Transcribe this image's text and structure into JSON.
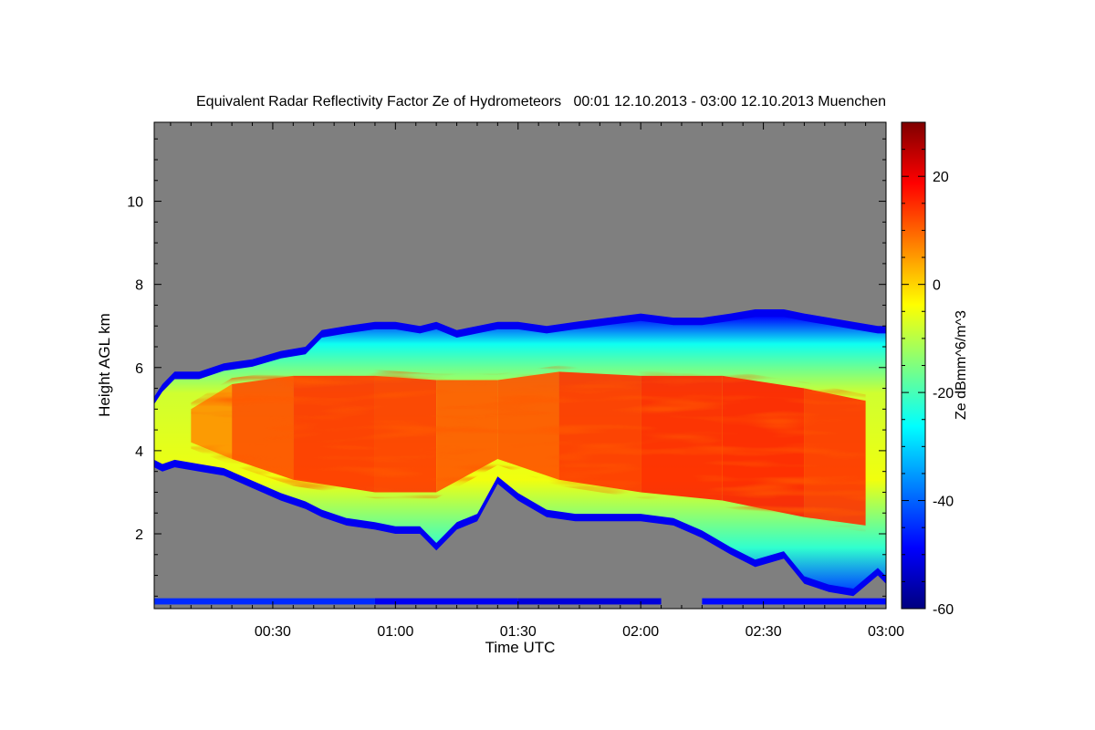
{
  "chart_data": {
    "type": "heatmap",
    "title": "Equivalent Radar Reflectivity Factor Ze of Hydrometeors   00:01 12.10.2013 - 03:00 12.10.2013 Muenchen",
    "xlabel": "Time UTC",
    "ylabel": "Height AGL km",
    "colorbar_label": "Ze dBmm^6/m^3",
    "x_unit": "minutes",
    "xlim": [
      1,
      180
    ],
    "ylim": [
      0.2,
      11.9
    ],
    "zlim": [
      -60,
      30
    ],
    "x_ticks": [
      {
        "value": 30,
        "label": "00:30"
      },
      {
        "value": 60,
        "label": "01:00"
      },
      {
        "value": 90,
        "label": "01:30"
      },
      {
        "value": 120,
        "label": "02:00"
      },
      {
        "value": 150,
        "label": "02:30"
      },
      {
        "value": 180,
        "label": "03:00"
      }
    ],
    "y_ticks": [
      {
        "value": 2,
        "label": "2"
      },
      {
        "value": 4,
        "label": "4"
      },
      {
        "value": 6,
        "label": "6"
      },
      {
        "value": 8,
        "label": "8"
      },
      {
        "value": 10,
        "label": "10"
      }
    ],
    "colorbar_ticks": [
      {
        "value": -60,
        "label": "-60"
      },
      {
        "value": -40,
        "label": "-40"
      },
      {
        "value": -20,
        "label": "-20"
      },
      {
        "value": 0,
        "label": "0"
      },
      {
        "value": 20,
        "label": "20"
      }
    ],
    "colormap": [
      "#00007f",
      "#0000ff",
      "#007fff",
      "#00ffff",
      "#7fff7f",
      "#ffff00",
      "#ff7f00",
      "#ff0000",
      "#7f0000"
    ],
    "no_data_color": "#7f7f7f",
    "cloud_profile": [
      {
        "time": 1,
        "top": 5.3,
        "base": 3.6
      },
      {
        "time": 3,
        "top": 5.6,
        "base": 3.5
      },
      {
        "time": 6,
        "top": 5.9,
        "base": 3.6
      },
      {
        "time": 12,
        "top": 5.9,
        "base": 3.5
      },
      {
        "time": 18,
        "top": 6.1,
        "base": 3.4
      },
      {
        "time": 25,
        "top": 6.2,
        "base": 3.1
      },
      {
        "time": 32,
        "top": 6.4,
        "base": 2.8
      },
      {
        "time": 38,
        "top": 6.5,
        "base": 2.6
      },
      {
        "time": 42,
        "top": 6.9,
        "base": 2.4
      },
      {
        "time": 48,
        "top": 7.0,
        "base": 2.2
      },
      {
        "time": 55,
        "top": 7.1,
        "base": 2.1
      },
      {
        "time": 60,
        "top": 7.1,
        "base": 2.0
      },
      {
        "time": 66,
        "top": 7.0,
        "base": 2.0
      },
      {
        "time": 70,
        "top": 7.1,
        "base": 1.6
      },
      {
        "time": 75,
        "top": 6.9,
        "base": 2.1
      },
      {
        "time": 80,
        "top": 7.0,
        "base": 2.3
      },
      {
        "time": 85,
        "top": 7.1,
        "base": 3.2
      },
      {
        "time": 90,
        "top": 7.1,
        "base": 2.8
      },
      {
        "time": 97,
        "top": 7.0,
        "base": 2.4
      },
      {
        "time": 104,
        "top": 7.1,
        "base": 2.3
      },
      {
        "time": 112,
        "top": 7.2,
        "base": 2.3
      },
      {
        "time": 120,
        "top": 7.3,
        "base": 2.3
      },
      {
        "time": 128,
        "top": 7.2,
        "base": 2.2
      },
      {
        "time": 135,
        "top": 7.2,
        "base": 1.9
      },
      {
        "time": 142,
        "top": 7.3,
        "base": 1.5
      },
      {
        "time": 148,
        "top": 7.4,
        "base": 1.2
      },
      {
        "time": 155,
        "top": 7.4,
        "base": 1.4
      },
      {
        "time": 160,
        "top": 7.3,
        "base": 0.8
      },
      {
        "time": 166,
        "top": 7.2,
        "base": 0.6
      },
      {
        "time": 172,
        "top": 7.1,
        "base": 0.5
      },
      {
        "time": 178,
        "top": 7.0,
        "base": 1.0
      },
      {
        "time": 180,
        "top": 7.0,
        "base": 0.8
      }
    ],
    "core": [
      {
        "time": 10,
        "top": 5.0,
        "base": 4.2,
        "ze": 2
      },
      {
        "time": 20,
        "top": 5.6,
        "base": 3.8,
        "ze": 10
      },
      {
        "time": 35,
        "top": 5.8,
        "base": 3.3,
        "ze": 14
      },
      {
        "time": 55,
        "top": 5.8,
        "base": 3.0,
        "ze": 15
      },
      {
        "time": 70,
        "top": 5.7,
        "base": 3.0,
        "ze": 13
      },
      {
        "time": 85,
        "top": 5.7,
        "base": 3.8,
        "ze": 9
      },
      {
        "time": 100,
        "top": 5.9,
        "base": 3.3,
        "ze": 14
      },
      {
        "time": 120,
        "top": 5.8,
        "base": 3.0,
        "ze": 15
      },
      {
        "time": 140,
        "top": 5.8,
        "base": 2.8,
        "ze": 17
      },
      {
        "time": 160,
        "top": 5.5,
        "base": 2.4,
        "ze": 16
      },
      {
        "time": 175,
        "top": 5.2,
        "base": 2.2,
        "ze": 13
      }
    ],
    "surface_clutter": [
      {
        "t_start": 1,
        "t_end": 55,
        "ze": -45
      },
      {
        "t_start": 55,
        "t_end": 90,
        "ze": -50
      },
      {
        "t_start": 90,
        "t_end": 125,
        "ze": -52
      },
      {
        "t_start": 135,
        "t_end": 180,
        "ze": -48
      }
    ]
  }
}
